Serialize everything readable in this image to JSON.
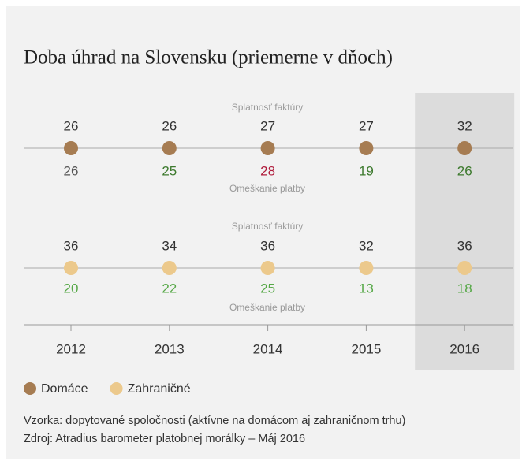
{
  "chart_data": {
    "type": "dot",
    "title": "Doba úhrad na Slovensku (priemerne v dňoch)",
    "categories": [
      "2012",
      "2013",
      "2014",
      "2015",
      "2016"
    ],
    "highlight": "2016",
    "series": [
      {
        "name": "Domáce",
        "color": "#a67c52",
        "upper_label": "Splatnosť faktúry",
        "lower_label": "Omeškanie platby",
        "values": [
          26,
          26,
          27,
          27,
          32
        ],
        "delay": [
          26,
          25,
          28,
          19,
          26
        ],
        "delay_colors": [
          "#555555",
          "#3d7a2e",
          "#b01c3c",
          "#3d7a2e",
          "#3d7a2e"
        ]
      },
      {
        "name": "Zahraničné",
        "color": "#ecc98c",
        "upper_label": "Splatnosť faktúry",
        "lower_label": "Omeškanie platby",
        "values": [
          36,
          34,
          36,
          32,
          36
        ],
        "delay": [
          20,
          22,
          25,
          13,
          18
        ],
        "delay_colors": [
          "#56a847",
          "#56a847",
          "#56a847",
          "#56a847",
          "#56a847"
        ]
      }
    ],
    "notes": [
      "Vzorka: dopytované spoločnosti (aktívne na domácom aj zahraničnom trhu)",
      "Zdroj: Atradius barometer platobnej morálky – Máj 2016"
    ]
  }
}
